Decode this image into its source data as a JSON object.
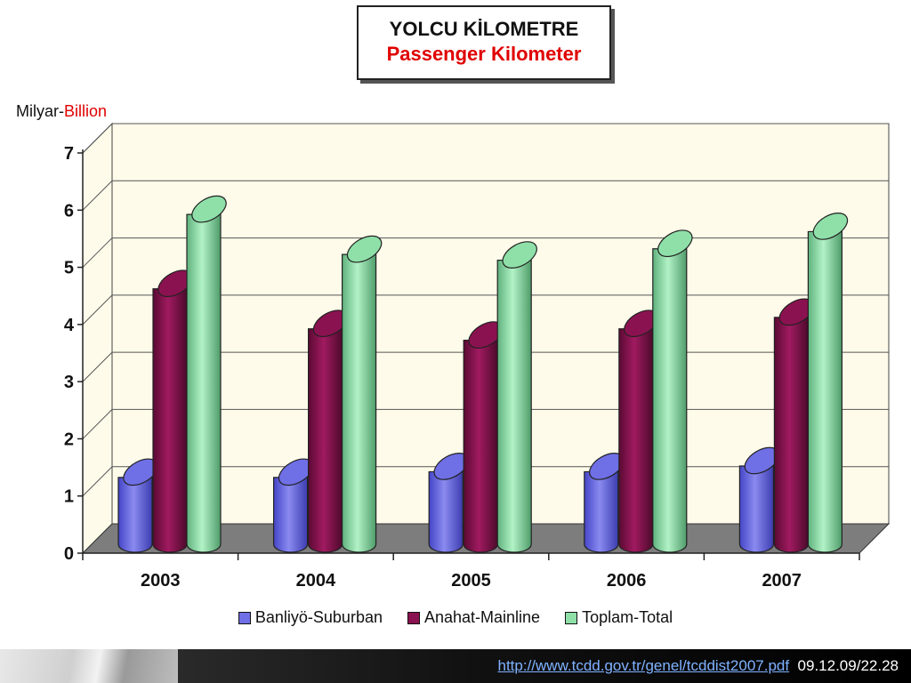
{
  "title": {
    "line1": "YOLCU KİLOMETRE",
    "line2": "Passenger Kilometer"
  },
  "unit_label": {
    "tr": "Milyar-",
    "en": "Billion"
  },
  "chart_data": {
    "type": "bar",
    "categories": [
      "2003",
      "2004",
      "2005",
      "2006",
      "2007"
    ],
    "series": [
      {
        "name": "Banliyö-Suburban",
        "values": [
          1.2,
          1.2,
          1.3,
          1.3,
          1.4
        ],
        "color": "#6f6fe6"
      },
      {
        "name": "Anahat-Mainline",
        "values": [
          4.5,
          3.8,
          3.6,
          3.8,
          4.0
        ],
        "color": "#8b1250"
      },
      {
        "name": "Toplam-Total",
        "values": [
          5.8,
          5.1,
          5.0,
          5.2,
          5.5
        ],
        "color": "#8ee0a8"
      }
    ],
    "yticks": [
      "0",
      "1",
      "2",
      "3",
      "4",
      "5",
      "6",
      "7"
    ],
    "ylim": [
      0,
      7
    ],
    "grid": true,
    "legend": "bottom",
    "colors": {
      "wall": "#fffbea",
      "floor": "#7d7d7d",
      "grid": "#555555"
    }
  },
  "footer": {
    "link": "http://www.tcdd.gov.tr/genel/tcddist2007.pdf",
    "datetime": "09.12.09/22.28"
  }
}
